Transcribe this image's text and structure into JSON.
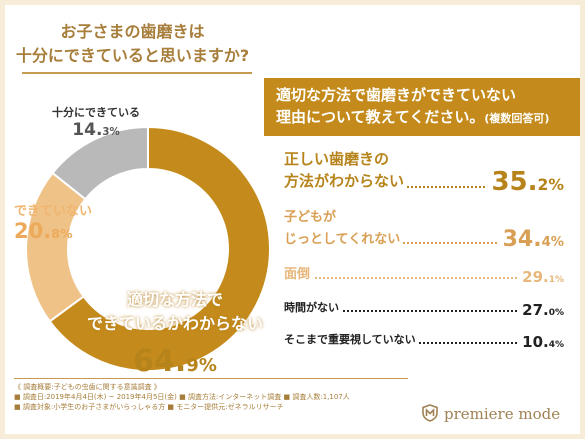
{
  "title": {
    "line1": "お子さまの歯磨きは",
    "line2": "十分にできていると思いますか?"
  },
  "chart_data": [
    {
      "type": "pie",
      "categories": [
        "十分にできている",
        "できていない",
        "適切な方法でできているかわからない"
      ],
      "values": [
        14.3,
        20.8,
        64.9
      ],
      "unit": "%",
      "colors": [
        "#b9b9b9",
        "#efc287",
        "#c48b1c"
      ]
    },
    {
      "type": "table",
      "title": "適切な方法で歯磨きができていない理由について教えてください。(複数回答可)",
      "categories": [
        "正しい歯磨きの方法がわからない",
        "子どもがじっとしてくれない",
        "面倒",
        "時間がない",
        "そこまで重要視していない"
      ],
      "values": [
        35.2,
        34.4,
        29.1,
        27.0,
        10.4
      ],
      "unit": "%"
    }
  ],
  "donut_labels": {
    "noproblem": {
      "name": "十分にできている",
      "int": "14.",
      "dec": "3%"
    },
    "notsure": {
      "name": "できていない",
      "int": "20.",
      "dec": "8%"
    },
    "unknown": {
      "name1": "適切な方法で",
      "name2": "できているかわからない",
      "int": "64.",
      "dec": "9%"
    }
  },
  "question": {
    "line1": "適切な方法で歯磨きができていない",
    "line2": "理由について教えてください。",
    "note": "(複数回答可)"
  },
  "reasons": [
    {
      "line1": "正しい歯磨きの",
      "line2": "方法がわからない",
      "int": "35.",
      "dec": "2%"
    },
    {
      "line1": "子どもが",
      "line2": "じっとしてくれない",
      "int": "34.",
      "dec": "4%"
    },
    {
      "line1": "面倒",
      "int": "29.",
      "dec": "1%"
    },
    {
      "line1": "時間がない",
      "int": "27.",
      "dec": "0%"
    },
    {
      "line1": "そこまで重要視していない",
      "int": "10.",
      "dec": "4%"
    }
  ],
  "survey": {
    "heading": "《 調査概要:子どもの虫歯に関する意識調査 》",
    "line1": "■ 調査日:2019年4月4日(木) ~ 2019年4月5日(金)    ■ 調査方法:インターネット調査    ■ 調査人数:1,107人",
    "line2": "■ 調査対象:小学生のお子さまがいらっしゃる方    ■ モニター提供元:ゼネラルリサーチ"
  },
  "brand": {
    "name": "premiere mode"
  }
}
